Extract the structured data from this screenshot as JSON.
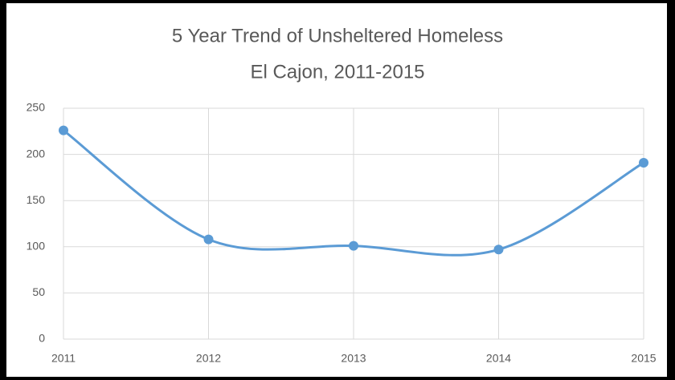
{
  "chart_data": {
    "type": "line",
    "title": "5 Year Trend of Unsheltered Homeless",
    "subtitle": "El Cajon, 2011-2015",
    "x": [
      2011,
      2012,
      2013,
      2014,
      2015
    ],
    "series": [
      {
        "color": "#5b9bd5",
        "values": [
          226,
          108,
          101,
          97,
          191
        ]
      }
    ],
    "xlim": [
      2011,
      2015
    ],
    "xticks": [
      2011,
      2012,
      2013,
      2014,
      2015
    ],
    "ylim": [
      0,
      250
    ],
    "yticks": [
      0,
      50,
      100,
      150,
      200,
      250
    ],
    "grid": true,
    "smooth": true
  }
}
